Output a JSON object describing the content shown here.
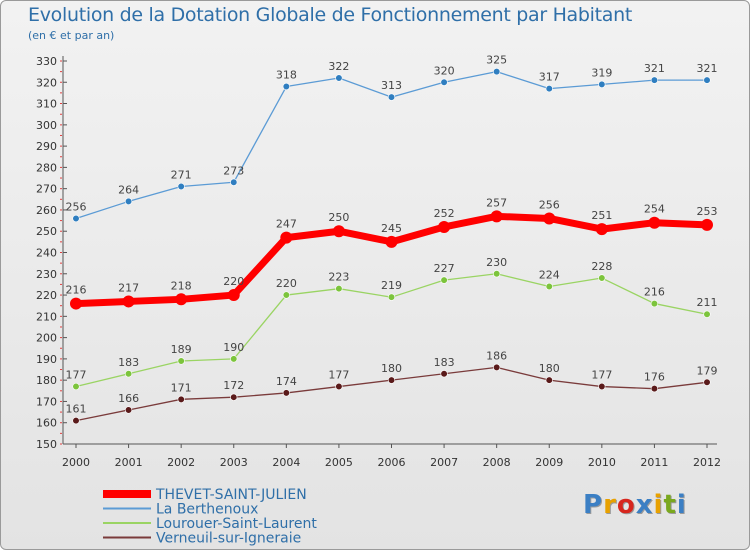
{
  "title": "Evolution de la Dotation Globale de Fonctionnement par Habitant",
  "subtitle": "(en € et par an)",
  "logo": {
    "text": "Proxiti",
    "letter_colors": [
      "#3b7fc4",
      "#e8a100",
      "#d7261e",
      "#3b7fc4",
      "#e8a100",
      "#7aa81e",
      "#3b7fc4"
    ]
  },
  "chart_data": {
    "type": "line",
    "title": "Evolution de la Dotation Globale de Fonctionnement par Habitant",
    "subtitle": "(en € et par an)",
    "categories": [
      "2000",
      "2001",
      "2002",
      "2003",
      "2004",
      "2005",
      "2006",
      "2007",
      "2008",
      "2009",
      "2010",
      "2011",
      "2012"
    ],
    "ylim": [
      150,
      330
    ],
    "yticks": [
      150,
      160,
      170,
      180,
      190,
      200,
      210,
      220,
      230,
      240,
      250,
      260,
      270,
      280,
      290,
      300,
      310,
      320,
      330
    ],
    "grid": false,
    "legend_position": "bottom-left",
    "series": [
      {
        "name": "La Berthenoux",
        "color": "#5b9bd5",
        "marker": "#2f7ec0",
        "emphasis": false,
        "values": [
          256,
          264,
          271,
          273,
          318,
          322,
          313,
          320,
          325,
          317,
          319,
          321,
          321
        ]
      },
      {
        "name": "Lourouer-Saint-Laurent",
        "color": "#9ad463",
        "marker": "#7cc43c",
        "emphasis": false,
        "values": [
          177,
          183,
          189,
          190,
          220,
          223,
          219,
          227,
          230,
          224,
          228,
          216,
          211
        ]
      },
      {
        "name": "Verneuil-sur-Igneraie",
        "color": "#7a3b3b",
        "marker": "#5a1a1a",
        "emphasis": false,
        "values": [
          161,
          166,
          171,
          172,
          174,
          177,
          180,
          183,
          186,
          180,
          177,
          176,
          179
        ]
      },
      {
        "name": "THEVET-SAINT-JULIEN",
        "color": "#ff0000",
        "marker": "#ff0000",
        "emphasis": true,
        "values": [
          216,
          217,
          218,
          220,
          247,
          250,
          245,
          252,
          257,
          256,
          251,
          254,
          253
        ]
      }
    ],
    "legend_order": [
      "THEVET-SAINT-JULIEN",
      "La Berthenoux",
      "Lourouer-Saint-Laurent",
      "Verneuil-sur-Igneraie"
    ]
  }
}
